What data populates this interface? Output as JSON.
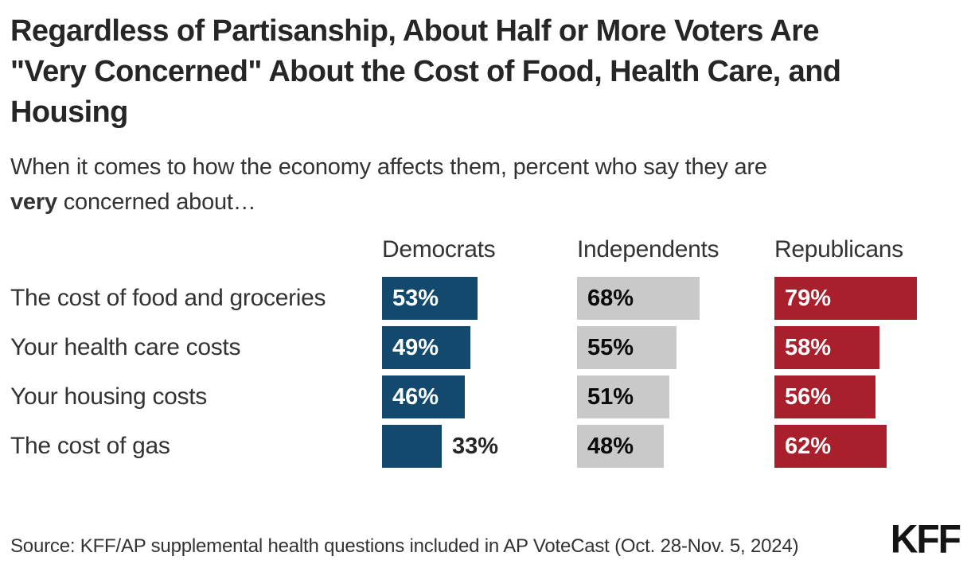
{
  "title_lines": [
    "Regardless of Partisanship, About Half or More Voters Are",
    "\"Very Concerned\" About the Cost of Food, Health Care, and",
    "Housing"
  ],
  "subtitle": {
    "line1": "When it comes to how the economy affects them, percent who say they are",
    "bold_word": "very",
    "line2_rest": " concerned about…"
  },
  "chart_data": {
    "type": "bar",
    "orientation": "horizontal",
    "title": "Regardless of Partisanship, About Half or More Voters Are \"Very Concerned\" About the Cost of Food, Health Care, and Housing",
    "subtitle": "When it comes to how the economy affects them, percent who say they are very concerned about…",
    "categories": [
      "The cost of food and groceries",
      "Your health care costs",
      "Your housing costs",
      "The cost of gas"
    ],
    "series": [
      {
        "name": "Democrats",
        "color": "#12496C",
        "value_label_color": "#ffffff",
        "values": [
          53,
          49,
          46,
          33
        ]
      },
      {
        "name": "Independents",
        "color": "#c9c9c9",
        "value_label_color": "#0a0a0a",
        "values": [
          68,
          55,
          51,
          48
        ]
      },
      {
        "name": "Republicans",
        "color": "#A9202C",
        "value_label_color": "#ffffff",
        "values": [
          79,
          58,
          56,
          62
        ]
      }
    ],
    "value_suffix": "%",
    "xlim": [
      0,
      100
    ],
    "grid": false,
    "legend_position": "column-headers-above-each-group",
    "outside_label_color": "#262626"
  },
  "footer": {
    "source": "Source: KFF/AP supplemental health questions included in AP VoteCast (Oct. 28-Nov. 5, 2024)",
    "logo_text": "KFF"
  }
}
